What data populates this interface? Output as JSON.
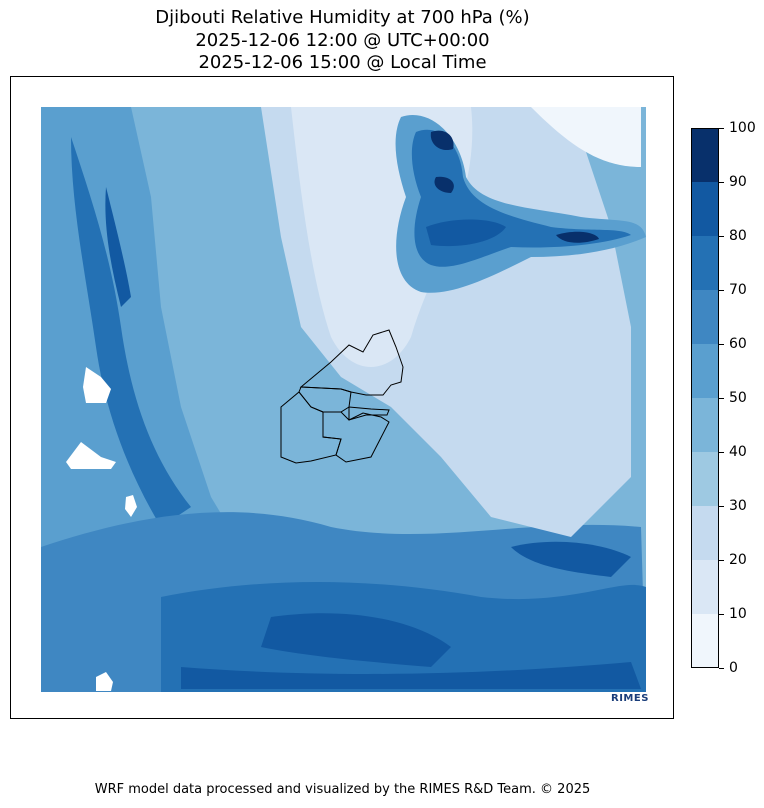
{
  "title": {
    "line1": "Djibouti Relative Humidity at 700 hPa (%)",
    "line2": "2025-12-06 12:00 @ UTC+00:00",
    "line3": "2025-12-06 15:00 @ Local Time"
  },
  "colorbar": {
    "ticks": [
      "100",
      "90",
      "80",
      "70",
      "60",
      "50",
      "40",
      "30",
      "20",
      "10",
      "0"
    ],
    "levels": [
      0,
      10,
      20,
      30,
      40,
      50,
      60,
      70,
      80,
      90,
      100
    ],
    "colors": [
      "#f0f6fc",
      "#dae7f5",
      "#c5daef",
      "#9ec9e2",
      "#7bb5d9",
      "#5a9fcf",
      "#3f87c2",
      "#2471b4",
      "#1259a2",
      "#08306b"
    ]
  },
  "logo": {
    "text": "RIMES"
  },
  "footer": "WRF model data processed and visualized by the RIMES R&D Team. © 2025"
}
